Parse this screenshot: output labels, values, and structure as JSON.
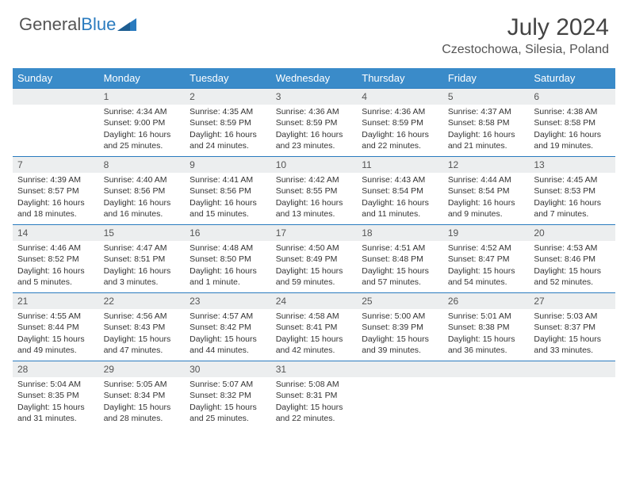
{
  "logo": {
    "text_general": "General",
    "text_blue": "Blue"
  },
  "colors": {
    "header_bg": "#3a8bc9",
    "header_text": "#ffffff",
    "daynum_bg": "#eceeef",
    "daynum_border": "#2a7bbf",
    "body_text": "#333333",
    "title_text": "#444444"
  },
  "typography": {
    "month_title_size": 30,
    "location_size": 16,
    "weekday_size": 13,
    "cell_size": 10.5
  },
  "title": "July 2024",
  "location": "Czestochowa, Silesia, Poland",
  "weekdays": [
    "Sunday",
    "Monday",
    "Tuesday",
    "Wednesday",
    "Thursday",
    "Friday",
    "Saturday"
  ],
  "weeks": [
    [
      null,
      {
        "n": "1",
        "sunrise": "Sunrise: 4:34 AM",
        "sunset": "Sunset: 9:00 PM",
        "day1": "Daylight: 16 hours",
        "day2": "and 25 minutes."
      },
      {
        "n": "2",
        "sunrise": "Sunrise: 4:35 AM",
        "sunset": "Sunset: 8:59 PM",
        "day1": "Daylight: 16 hours",
        "day2": "and 24 minutes."
      },
      {
        "n": "3",
        "sunrise": "Sunrise: 4:36 AM",
        "sunset": "Sunset: 8:59 PM",
        "day1": "Daylight: 16 hours",
        "day2": "and 23 minutes."
      },
      {
        "n": "4",
        "sunrise": "Sunrise: 4:36 AM",
        "sunset": "Sunset: 8:59 PM",
        "day1": "Daylight: 16 hours",
        "day2": "and 22 minutes."
      },
      {
        "n": "5",
        "sunrise": "Sunrise: 4:37 AM",
        "sunset": "Sunset: 8:58 PM",
        "day1": "Daylight: 16 hours",
        "day2": "and 21 minutes."
      },
      {
        "n": "6",
        "sunrise": "Sunrise: 4:38 AM",
        "sunset": "Sunset: 8:58 PM",
        "day1": "Daylight: 16 hours",
        "day2": "and 19 minutes."
      }
    ],
    [
      {
        "n": "7",
        "sunrise": "Sunrise: 4:39 AM",
        "sunset": "Sunset: 8:57 PM",
        "day1": "Daylight: 16 hours",
        "day2": "and 18 minutes."
      },
      {
        "n": "8",
        "sunrise": "Sunrise: 4:40 AM",
        "sunset": "Sunset: 8:56 PM",
        "day1": "Daylight: 16 hours",
        "day2": "and 16 minutes."
      },
      {
        "n": "9",
        "sunrise": "Sunrise: 4:41 AM",
        "sunset": "Sunset: 8:56 PM",
        "day1": "Daylight: 16 hours",
        "day2": "and 15 minutes."
      },
      {
        "n": "10",
        "sunrise": "Sunrise: 4:42 AM",
        "sunset": "Sunset: 8:55 PM",
        "day1": "Daylight: 16 hours",
        "day2": "and 13 minutes."
      },
      {
        "n": "11",
        "sunrise": "Sunrise: 4:43 AM",
        "sunset": "Sunset: 8:54 PM",
        "day1": "Daylight: 16 hours",
        "day2": "and 11 minutes."
      },
      {
        "n": "12",
        "sunrise": "Sunrise: 4:44 AM",
        "sunset": "Sunset: 8:54 PM",
        "day1": "Daylight: 16 hours",
        "day2": "and 9 minutes."
      },
      {
        "n": "13",
        "sunrise": "Sunrise: 4:45 AM",
        "sunset": "Sunset: 8:53 PM",
        "day1": "Daylight: 16 hours",
        "day2": "and 7 minutes."
      }
    ],
    [
      {
        "n": "14",
        "sunrise": "Sunrise: 4:46 AM",
        "sunset": "Sunset: 8:52 PM",
        "day1": "Daylight: 16 hours",
        "day2": "and 5 minutes."
      },
      {
        "n": "15",
        "sunrise": "Sunrise: 4:47 AM",
        "sunset": "Sunset: 8:51 PM",
        "day1": "Daylight: 16 hours",
        "day2": "and 3 minutes."
      },
      {
        "n": "16",
        "sunrise": "Sunrise: 4:48 AM",
        "sunset": "Sunset: 8:50 PM",
        "day1": "Daylight: 16 hours",
        "day2": "and 1 minute."
      },
      {
        "n": "17",
        "sunrise": "Sunrise: 4:50 AM",
        "sunset": "Sunset: 8:49 PM",
        "day1": "Daylight: 15 hours",
        "day2": "and 59 minutes."
      },
      {
        "n": "18",
        "sunrise": "Sunrise: 4:51 AM",
        "sunset": "Sunset: 8:48 PM",
        "day1": "Daylight: 15 hours",
        "day2": "and 57 minutes."
      },
      {
        "n": "19",
        "sunrise": "Sunrise: 4:52 AM",
        "sunset": "Sunset: 8:47 PM",
        "day1": "Daylight: 15 hours",
        "day2": "and 54 minutes."
      },
      {
        "n": "20",
        "sunrise": "Sunrise: 4:53 AM",
        "sunset": "Sunset: 8:46 PM",
        "day1": "Daylight: 15 hours",
        "day2": "and 52 minutes."
      }
    ],
    [
      {
        "n": "21",
        "sunrise": "Sunrise: 4:55 AM",
        "sunset": "Sunset: 8:44 PM",
        "day1": "Daylight: 15 hours",
        "day2": "and 49 minutes."
      },
      {
        "n": "22",
        "sunrise": "Sunrise: 4:56 AM",
        "sunset": "Sunset: 8:43 PM",
        "day1": "Daylight: 15 hours",
        "day2": "and 47 minutes."
      },
      {
        "n": "23",
        "sunrise": "Sunrise: 4:57 AM",
        "sunset": "Sunset: 8:42 PM",
        "day1": "Daylight: 15 hours",
        "day2": "and 44 minutes."
      },
      {
        "n": "24",
        "sunrise": "Sunrise: 4:58 AM",
        "sunset": "Sunset: 8:41 PM",
        "day1": "Daylight: 15 hours",
        "day2": "and 42 minutes."
      },
      {
        "n": "25",
        "sunrise": "Sunrise: 5:00 AM",
        "sunset": "Sunset: 8:39 PM",
        "day1": "Daylight: 15 hours",
        "day2": "and 39 minutes."
      },
      {
        "n": "26",
        "sunrise": "Sunrise: 5:01 AM",
        "sunset": "Sunset: 8:38 PM",
        "day1": "Daylight: 15 hours",
        "day2": "and 36 minutes."
      },
      {
        "n": "27",
        "sunrise": "Sunrise: 5:03 AM",
        "sunset": "Sunset: 8:37 PM",
        "day1": "Daylight: 15 hours",
        "day2": "and 33 minutes."
      }
    ],
    [
      {
        "n": "28",
        "sunrise": "Sunrise: 5:04 AM",
        "sunset": "Sunset: 8:35 PM",
        "day1": "Daylight: 15 hours",
        "day2": "and 31 minutes."
      },
      {
        "n": "29",
        "sunrise": "Sunrise: 5:05 AM",
        "sunset": "Sunset: 8:34 PM",
        "day1": "Daylight: 15 hours",
        "day2": "and 28 minutes."
      },
      {
        "n": "30",
        "sunrise": "Sunrise: 5:07 AM",
        "sunset": "Sunset: 8:32 PM",
        "day1": "Daylight: 15 hours",
        "day2": "and 25 minutes."
      },
      {
        "n": "31",
        "sunrise": "Sunrise: 5:08 AM",
        "sunset": "Sunset: 8:31 PM",
        "day1": "Daylight: 15 hours",
        "day2": "and 22 minutes."
      },
      null,
      null,
      null
    ]
  ]
}
